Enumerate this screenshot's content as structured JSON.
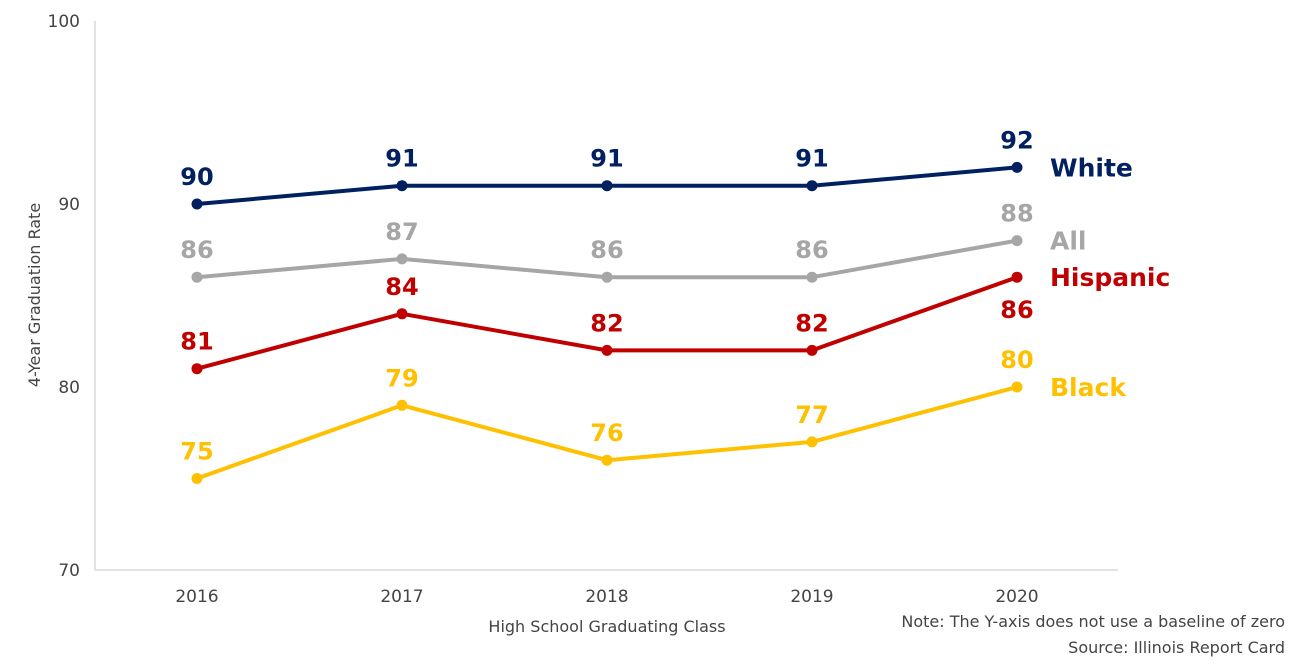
{
  "chart_data": {
    "type": "line",
    "title": "",
    "xlabel": "High School Graduating Class",
    "ylabel": "4-Year Graduation Rate",
    "ylim": [
      70,
      100
    ],
    "yticks": [
      70,
      80,
      90,
      100
    ],
    "categories": [
      "2016",
      "2017",
      "2018",
      "2019",
      "2020"
    ],
    "grid": false,
    "legend": "inline-right",
    "series": [
      {
        "name": "White",
        "color": "#002060",
        "values": [
          90,
          91,
          91,
          91,
          92
        ],
        "label_pos": [
          "above",
          "above",
          "above",
          "above",
          "above"
        ]
      },
      {
        "name": "All",
        "color": "#a6a6a6",
        "values": [
          86,
          87,
          86,
          86,
          88
        ],
        "label_pos": [
          "above",
          "above",
          "above",
          "above",
          "above"
        ]
      },
      {
        "name": "Hispanic",
        "color": "#c00000",
        "values": [
          81,
          84,
          82,
          82,
          86
        ],
        "label_pos": [
          "above",
          "above",
          "above",
          "above",
          "below"
        ]
      },
      {
        "name": "Black",
        "color": "#ffc000",
        "values": [
          75,
          79,
          76,
          77,
          80
        ],
        "label_pos": [
          "above",
          "above",
          "above",
          "above",
          "above"
        ]
      }
    ],
    "notes": [
      "Note: The Y-axis does not use a baseline of zero",
      "Source: Illinois Report Card"
    ]
  }
}
